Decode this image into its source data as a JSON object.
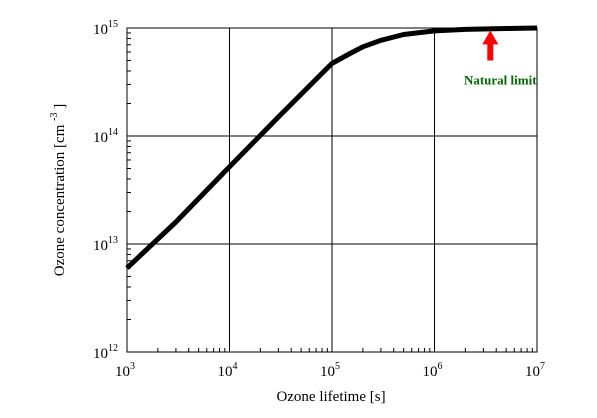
{
  "chart_data": {
    "type": "line",
    "title": "",
    "xlabel": "Ozone lifetime [s]",
    "ylabel_prefix": "Ozone concentration  [cm",
    "ylabel_exp": "-3",
    "ylabel_suffix": "]",
    "x_scale": "log",
    "y_scale": "log",
    "xlim": [
      1000,
      10000000
    ],
    "ylim": [
      1000000000000,
      1000000000000000
    ],
    "grid": true,
    "x_ticks": [
      {
        "base": "10",
        "exp": "3",
        "value": 1000
      },
      {
        "base": "10",
        "exp": "4",
        "value": 10000
      },
      {
        "base": "10",
        "exp": "5",
        "value": 100000
      },
      {
        "base": "10",
        "exp": "6",
        "value": 1000000
      },
      {
        "base": "10",
        "exp": "7",
        "value": 10000000
      }
    ],
    "y_ticks": [
      {
        "base": "10",
        "exp": "12",
        "value": 1000000000000
      },
      {
        "base": "10",
        "exp": "13",
        "value": 10000000000000
      },
      {
        "base": "10",
        "exp": "14",
        "value": 100000000000000
      },
      {
        "base": "10",
        "exp": "15",
        "value": 1000000000000000
      }
    ],
    "series": [
      {
        "color": "#000000",
        "points": [
          [
            1000,
            6000000000000
          ],
          [
            3000,
            16000000000000
          ],
          [
            10000,
            52000000000000
          ],
          [
            30000,
            150000000000000
          ],
          [
            100000,
            470000000000000
          ],
          [
            150000,
            580000000000000
          ],
          [
            200000,
            670000000000000
          ],
          [
            300000,
            770000000000000
          ],
          [
            500000,
            870000000000000
          ],
          [
            1000000,
            940000000000000
          ],
          [
            2000000,
            970000000000000
          ],
          [
            5000000,
            990000000000000
          ],
          [
            10000000,
            1000000000000000
          ]
        ]
      }
    ],
    "annotation": {
      "text": "Natural limit",
      "color": "#006400",
      "arrow_color": "#ff0000",
      "x": 3500000,
      "y_tip": 950000000000000,
      "y_base": 500000000000000
    }
  }
}
